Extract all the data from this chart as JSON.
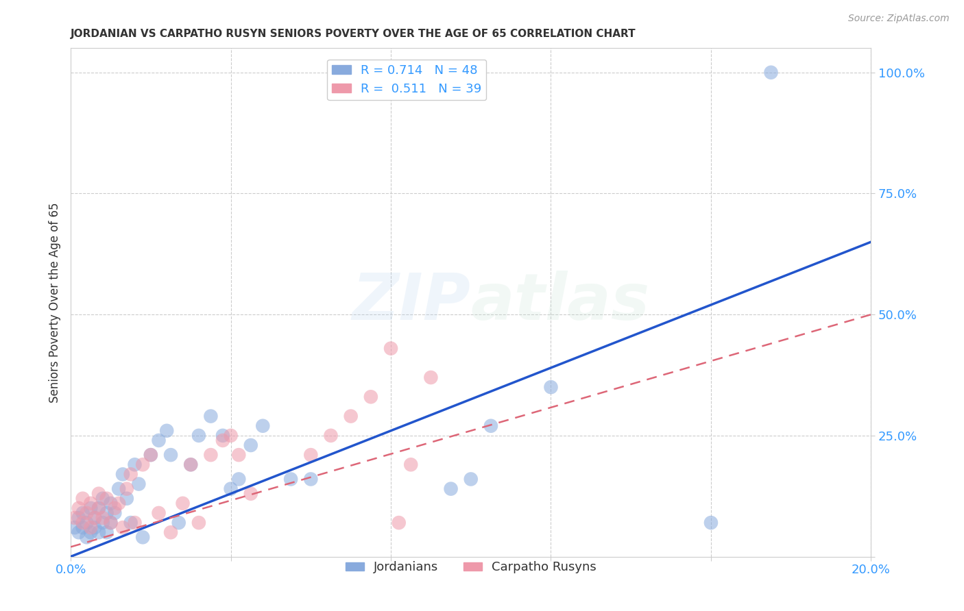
{
  "title": "JORDANIAN VS CARPATHO RUSYN SENIORS POVERTY OVER THE AGE OF 65 CORRELATION CHART",
  "source": "Source: ZipAtlas.com",
  "ylabel_label": "Seniors Poverty Over the Age of 65",
  "watermark_zip": "ZIP",
  "watermark_atlas": "atlas",
  "xlim": [
    0.0,
    0.2
  ],
  "ylim": [
    0.0,
    1.05
  ],
  "x_ticks": [
    0.0,
    0.04,
    0.08,
    0.12,
    0.16,
    0.2
  ],
  "x_tick_labels": [
    "0.0%",
    "",
    "",
    "",
    "",
    "20.0%"
  ],
  "y_ticks": [
    0.0,
    0.25,
    0.5,
    0.75,
    1.0
  ],
  "y_tick_labels": [
    "",
    "25.0%",
    "50.0%",
    "75.0%",
    "100.0%"
  ],
  "blue_color": "#88AADD",
  "pink_color": "#EE99AA",
  "blue_line_color": "#2255CC",
  "pink_line_color": "#DD6677",
  "legend_blue_label": "R = 0.714   N = 48",
  "legend_pink_label": "R =  0.511   N = 39",
  "bottom_legend_blue": "Jordanians",
  "bottom_legend_pink": "Carpatho Rusyns",
  "blue_scatter_x": [
    0.001,
    0.002,
    0.002,
    0.003,
    0.003,
    0.004,
    0.004,
    0.005,
    0.005,
    0.006,
    0.006,
    0.007,
    0.007,
    0.008,
    0.008,
    0.009,
    0.009,
    0.01,
    0.01,
    0.011,
    0.012,
    0.013,
    0.014,
    0.015,
    0.016,
    0.017,
    0.018,
    0.02,
    0.022,
    0.024,
    0.025,
    0.027,
    0.03,
    0.032,
    0.035,
    0.038,
    0.04,
    0.042,
    0.045,
    0.048,
    0.055,
    0.06,
    0.095,
    0.1,
    0.105,
    0.12,
    0.16,
    0.175
  ],
  "blue_scatter_y": [
    0.06,
    0.08,
    0.05,
    0.09,
    0.06,
    0.07,
    0.04,
    0.1,
    0.05,
    0.08,
    0.06,
    0.1,
    0.05,
    0.12,
    0.07,
    0.09,
    0.05,
    0.11,
    0.07,
    0.09,
    0.14,
    0.17,
    0.12,
    0.07,
    0.19,
    0.15,
    0.04,
    0.21,
    0.24,
    0.26,
    0.21,
    0.07,
    0.19,
    0.25,
    0.29,
    0.25,
    0.14,
    0.16,
    0.23,
    0.27,
    0.16,
    0.16,
    0.14,
    0.16,
    0.27,
    0.35,
    0.07,
    1.0
  ],
  "pink_scatter_x": [
    0.001,
    0.002,
    0.003,
    0.003,
    0.004,
    0.005,
    0.005,
    0.006,
    0.007,
    0.007,
    0.008,
    0.009,
    0.01,
    0.011,
    0.012,
    0.013,
    0.014,
    0.015,
    0.016,
    0.018,
    0.02,
    0.022,
    0.025,
    0.028,
    0.03,
    0.032,
    0.035,
    0.038,
    0.04,
    0.042,
    0.045,
    0.06,
    0.065,
    0.07,
    0.075,
    0.08,
    0.082,
    0.085,
    0.09
  ],
  "pink_scatter_y": [
    0.08,
    0.1,
    0.07,
    0.12,
    0.09,
    0.06,
    0.11,
    0.08,
    0.1,
    0.13,
    0.08,
    0.12,
    0.07,
    0.1,
    0.11,
    0.06,
    0.14,
    0.17,
    0.07,
    0.19,
    0.21,
    0.09,
    0.05,
    0.11,
    0.19,
    0.07,
    0.21,
    0.24,
    0.25,
    0.21,
    0.13,
    0.21,
    0.25,
    0.29,
    0.33,
    0.43,
    0.07,
    0.19,
    0.37
  ],
  "blue_intercept": 0.0,
  "blue_slope": 3.3,
  "pink_intercept": 0.02,
  "pink_slope": 2.6,
  "grid_color": "#CCCCCC",
  "title_color": "#333333",
  "tick_label_color": "#3399FF",
  "background_color": "#FFFFFF"
}
